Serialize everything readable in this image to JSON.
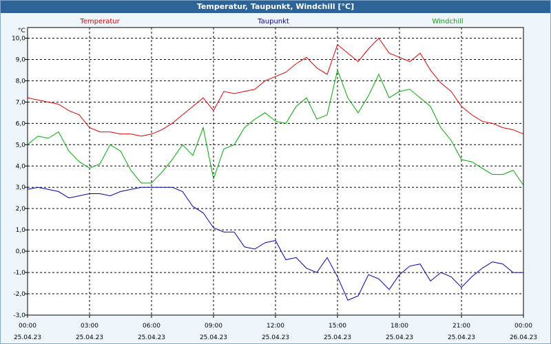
{
  "window": {
    "title": "Temperatur, Taupunkt, Windchill [°C]"
  },
  "chart_data": {
    "type": "line",
    "title": "Temperatur, Taupunkt, Windchill [°C]",
    "ylabel": "°C",
    "ylim": [
      -3.0,
      10.5
    ],
    "xlim_hours": [
      0,
      24
    ],
    "grid": true,
    "legend_position": "top",
    "y_ticks": [
      "10,0",
      "9,0",
      "8,0",
      "7,0",
      "6,0",
      "5,0",
      "4,0",
      "3,0",
      "2,0",
      "1,0",
      "0,0",
      "-1,0",
      "-2,0",
      "-3,0"
    ],
    "x_ticks": [
      {
        "time": "00:00",
        "date": "25.04.23"
      },
      {
        "time": "03:00",
        "date": "25.04.23"
      },
      {
        "time": "06:00",
        "date": "25.04.23"
      },
      {
        "time": "09:00",
        "date": "25.04.23"
      },
      {
        "time": "12:00",
        "date": "25.04.23"
      },
      {
        "time": "15:00",
        "date": "25.04.23"
      },
      {
        "time": "18:00",
        "date": "25.04.23"
      },
      {
        "time": "21:00",
        "date": "25.04.23"
      },
      {
        "time": "00:00",
        "date": "26.04.23"
      }
    ],
    "series": [
      {
        "name": "Temperatur",
        "color": "#dd0000",
        "points": [
          [
            0,
            7.2
          ],
          [
            0.5,
            7.1
          ],
          [
            1,
            7.0
          ],
          [
            1.5,
            6.9
          ],
          [
            2,
            6.6
          ],
          [
            2.5,
            6.4
          ],
          [
            3,
            5.8
          ],
          [
            3.5,
            5.6
          ],
          [
            4,
            5.6
          ],
          [
            4.5,
            5.5
          ],
          [
            5,
            5.5
          ],
          [
            5.5,
            5.4
          ],
          [
            6,
            5.5
          ],
          [
            6.5,
            5.7
          ],
          [
            7,
            6.0
          ],
          [
            7.5,
            6.4
          ],
          [
            8,
            6.8
          ],
          [
            8.5,
            7.2
          ],
          [
            9,
            6.6
          ],
          [
            9.5,
            7.5
          ],
          [
            10,
            7.4
          ],
          [
            10.5,
            7.5
          ],
          [
            11,
            7.6
          ],
          [
            11.5,
            8.0
          ],
          [
            12,
            8.2
          ],
          [
            12.5,
            8.4
          ],
          [
            13,
            8.8
          ],
          [
            13.5,
            9.1
          ],
          [
            14,
            8.6
          ],
          [
            14.5,
            8.3
          ],
          [
            15,
            9.7
          ],
          [
            15.5,
            9.3
          ],
          [
            16,
            8.9
          ],
          [
            16.5,
            9.5
          ],
          [
            17,
            10.0
          ],
          [
            17.5,
            9.3
          ],
          [
            18,
            9.1
          ],
          [
            18.5,
            8.9
          ],
          [
            19,
            9.3
          ],
          [
            19.5,
            8.5
          ],
          [
            20,
            7.9
          ],
          [
            20.5,
            7.5
          ],
          [
            21,
            6.8
          ],
          [
            21.5,
            6.4
          ],
          [
            22,
            6.1
          ],
          [
            22.5,
            6.0
          ],
          [
            23,
            5.8
          ],
          [
            23.5,
            5.7
          ],
          [
            24,
            5.5
          ]
        ]
      },
      {
        "name": "Taupunkt",
        "color": "#0000aa",
        "points": [
          [
            0,
            2.9
          ],
          [
            0.5,
            3.0
          ],
          [
            1,
            2.9
          ],
          [
            1.5,
            2.8
          ],
          [
            2,
            2.5
          ],
          [
            2.5,
            2.6
          ],
          [
            3,
            2.7
          ],
          [
            3.5,
            2.7
          ],
          [
            4,
            2.6
          ],
          [
            4.5,
            2.8
          ],
          [
            5,
            2.9
          ],
          [
            5.5,
            3.0
          ],
          [
            6,
            3.0
          ],
          [
            6.5,
            3.0
          ],
          [
            7,
            3.0
          ],
          [
            7.5,
            2.8
          ],
          [
            8,
            2.1
          ],
          [
            8.5,
            1.8
          ],
          [
            9,
            1.1
          ],
          [
            9.5,
            0.9
          ],
          [
            10,
            0.9
          ],
          [
            10.5,
            0.2
          ],
          [
            11,
            0.1
          ],
          [
            11.5,
            0.4
          ],
          [
            12,
            0.5
          ],
          [
            12.5,
            -0.4
          ],
          [
            13,
            -0.3
          ],
          [
            13.5,
            -0.8
          ],
          [
            14,
            -1.0
          ],
          [
            14.5,
            -0.3
          ],
          [
            15,
            -1.2
          ],
          [
            15.5,
            -2.3
          ],
          [
            16,
            -2.1
          ],
          [
            16.5,
            -1.1
          ],
          [
            17,
            -1.3
          ],
          [
            17.5,
            -1.8
          ],
          [
            18,
            -1.1
          ],
          [
            18.5,
            -0.7
          ],
          [
            19,
            -0.6
          ],
          [
            19.5,
            -1.4
          ],
          [
            20,
            -1.0
          ],
          [
            20.5,
            -1.2
          ],
          [
            21,
            -1.7
          ],
          [
            21.5,
            -1.2
          ],
          [
            22,
            -0.8
          ],
          [
            22.5,
            -0.5
          ],
          [
            23,
            -0.6
          ],
          [
            23.5,
            -1.0
          ],
          [
            24,
            -1.0
          ]
        ]
      },
      {
        "name": "Windchill",
        "color": "#00aa00",
        "points": [
          [
            0,
            5.0
          ],
          [
            0.5,
            5.4
          ],
          [
            1,
            5.3
          ],
          [
            1.5,
            5.6
          ],
          [
            2,
            4.7
          ],
          [
            2.5,
            4.2
          ],
          [
            3,
            3.9
          ],
          [
            3.5,
            4.1
          ],
          [
            4,
            5.0
          ],
          [
            4.5,
            4.7
          ],
          [
            5,
            3.8
          ],
          [
            5.5,
            3.2
          ],
          [
            6,
            3.2
          ],
          [
            6.5,
            3.7
          ],
          [
            7,
            4.3
          ],
          [
            7.5,
            5.0
          ],
          [
            8,
            4.5
          ],
          [
            8.5,
            5.8
          ],
          [
            9,
            3.4
          ],
          [
            9.5,
            4.8
          ],
          [
            10,
            5.0
          ],
          [
            10.5,
            5.8
          ],
          [
            11,
            6.2
          ],
          [
            11.5,
            6.5
          ],
          [
            12,
            6.1
          ],
          [
            12.5,
            6.0
          ],
          [
            13,
            6.8
          ],
          [
            13.5,
            7.2
          ],
          [
            14,
            6.2
          ],
          [
            14.5,
            6.4
          ],
          [
            15,
            8.5
          ],
          [
            15.5,
            7.2
          ],
          [
            16,
            6.5
          ],
          [
            16.5,
            7.3
          ],
          [
            17,
            8.3
          ],
          [
            17.5,
            7.2
          ],
          [
            18,
            7.5
          ],
          [
            18.5,
            7.6
          ],
          [
            19,
            7.2
          ],
          [
            19.5,
            6.8
          ],
          [
            20,
            5.8
          ],
          [
            20.5,
            5.2
          ],
          [
            21,
            4.3
          ],
          [
            21.5,
            4.2
          ],
          [
            22,
            3.9
          ],
          [
            22.5,
            3.6
          ],
          [
            23,
            3.6
          ],
          [
            23.5,
            3.8
          ],
          [
            24,
            3.1
          ]
        ]
      }
    ]
  }
}
